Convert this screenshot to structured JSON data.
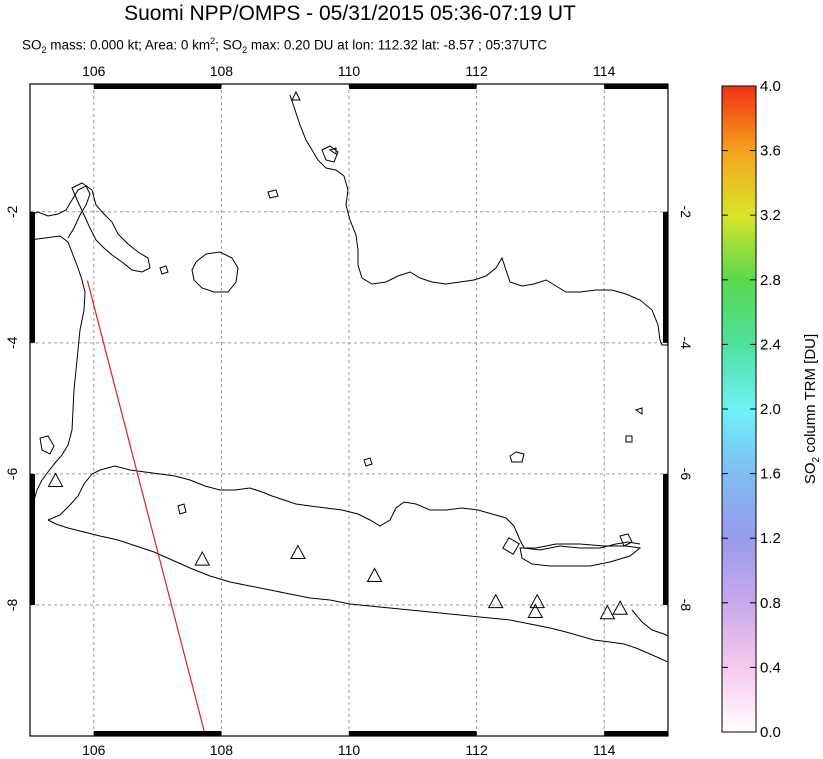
{
  "header": {
    "title": "Suomi NPP/OMPS - 05/31/2015 05:36-07:19 UT",
    "subtitle_parts": {
      "so2_prefix": "SO",
      "sub2": "2",
      "mass_text": " mass: 0.000 kt; Area: 0 km",
      "sup2": "2",
      "sep": "; SO",
      "max_text": " max: 0.20 DU at lon: 112.32 lat: -8.57 ; 05:37UTC"
    }
  },
  "map": {
    "lon_range": [
      105,
      115
    ],
    "lat_range": [
      -10.0,
      -0.05
    ],
    "lon_ticks": [
      "106",
      "108",
      "110",
      "112",
      "114"
    ],
    "lat_ticks": [
      "-2",
      "-4",
      "-6",
      "-8"
    ],
    "lon_tick_values": [
      106,
      108,
      110,
      112,
      114
    ],
    "lat_tick_values": [
      -2,
      -4,
      -6,
      -8
    ],
    "gridlines": true,
    "volcanoes": [
      {
        "lon": 105.4,
        "lat": -6.1
      },
      {
        "lon": 107.7,
        "lat": -7.3
      },
      {
        "lon": 109.2,
        "lat": -7.2
      },
      {
        "lon": 110.4,
        "lat": -7.55
      },
      {
        "lon": 112.3,
        "lat": -7.95
      },
      {
        "lon": 112.95,
        "lat": -7.95
      },
      {
        "lon": 112.92,
        "lat": -8.1
      },
      {
        "lon": 114.05,
        "lat": -8.12
      },
      {
        "lon": 114.25,
        "lat": -8.05
      }
    ],
    "orbit_track": [
      {
        "lon": 105.9,
        "lat": -3.05
      },
      {
        "lon": 107.75,
        "lat": -10.0
      }
    ],
    "orbit_color": "#dd2222"
  },
  "colorbar": {
    "label_prefix": "SO",
    "label_sub": "2",
    "label_suffix": " column TRM [DU]",
    "ticks": [
      "0.0",
      "0.4",
      "0.8",
      "1.2",
      "1.6",
      "2.0",
      "2.4",
      "2.8",
      "3.2",
      "3.6",
      "4.0"
    ],
    "min": 0.0,
    "max": 4.0,
    "colors": [
      "#ffffff",
      "#f6c8ee",
      "#c9a9ec",
      "#9a9aee",
      "#7fbcf2",
      "#6ef2f6",
      "#4ee0a0",
      "#5ad84c",
      "#d8e52a",
      "#f6a21c",
      "#f23014"
    ]
  }
}
